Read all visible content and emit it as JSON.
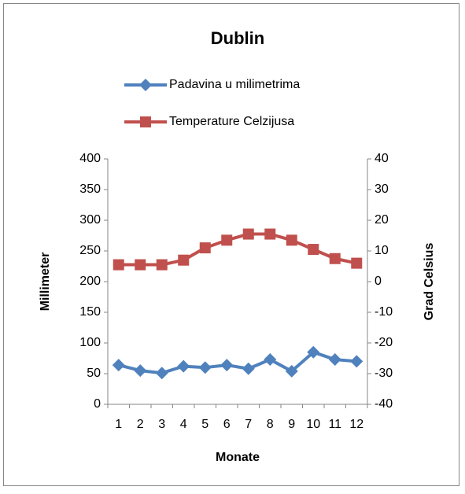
{
  "chart_data": {
    "type": "line",
    "title": "Dublin",
    "categories": [
      "1",
      "2",
      "3",
      "4",
      "5",
      "6",
      "7",
      "8",
      "9",
      "10",
      "11",
      "12"
    ],
    "series": [
      {
        "name": "Padavina u milimetrima",
        "color": "#4f81bd",
        "marker": "diamond",
        "values": [
          64,
          55,
          51,
          62,
          60,
          64,
          58,
          73,
          54,
          85,
          73,
          70
        ]
      },
      {
        "name": "Temperature Celzijusa",
        "color": "#c0504d",
        "marker": "square",
        "axis": "y2",
        "values": [
          5.5,
          5.5,
          5.5,
          7,
          11,
          13.5,
          15.5,
          15.5,
          13.5,
          10.5,
          7.5,
          6
        ]
      }
    ],
    "ylim": [
      0,
      400
    ],
    "yticks": [
      0,
      50,
      100,
      150,
      200,
      250,
      300,
      350,
      400
    ],
    "y2lim": [
      -40,
      40
    ],
    "y2ticks": [
      -40,
      -30,
      -20,
      -10,
      0,
      10,
      20,
      30,
      40
    ],
    "xlabel": "Monate",
    "ylabel": "Millimeter",
    "y2label": "Grad Celsius",
    "grid": false,
    "legend": "top"
  }
}
